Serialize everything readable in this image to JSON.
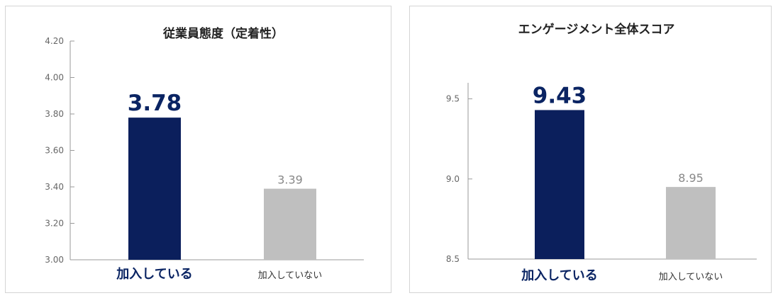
{
  "colors": {
    "highlight": "#0b1f5c",
    "muted": "#bfbfbf",
    "axis": "#9a9a9a",
    "tick_text": "#666666",
    "emph_text": "#0a2463",
    "muted_text": "#888888"
  },
  "chart_data": [
    {
      "type": "bar",
      "title": "従業員態度（定着性）",
      "categories": [
        "加入している",
        "加入していない"
      ],
      "values": [
        3.78,
        3.39
      ],
      "value_labels": [
        "3.78",
        "3.39"
      ],
      "ylim": [
        3.0,
        4.2
      ],
      "yticks": [
        3.0,
        3.2,
        3.4,
        3.6,
        3.8,
        4.0,
        4.2
      ],
      "ytick_labels": [
        "3.00",
        "3.20",
        "3.40",
        "3.60",
        "3.80",
        "4.00",
        "4.20"
      ],
      "grid": false,
      "legend": "none"
    },
    {
      "type": "bar",
      "title": "エンゲージメント全体スコア",
      "categories": [
        "加入している",
        "加入していない"
      ],
      "values": [
        9.43,
        8.95
      ],
      "value_labels": [
        "9.43",
        "8.95"
      ],
      "ylim": [
        8.5,
        9.6
      ],
      "yticks": [
        8.5,
        9.0,
        9.5
      ],
      "ytick_labels": [
        "8.5",
        "9.0",
        "9.5"
      ],
      "grid": false,
      "legend": "none"
    }
  ]
}
